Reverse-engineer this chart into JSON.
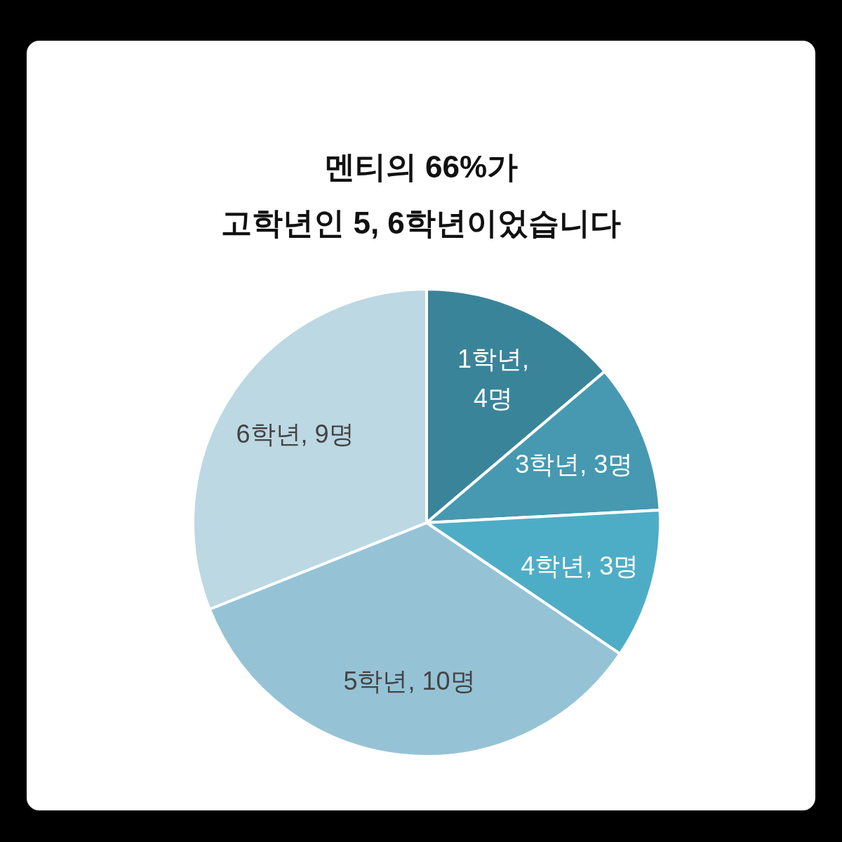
{
  "chart_data": {
    "type": "pie",
    "title": "멘티의 66%가\n고학년인 5, 6학년이었습니다",
    "categories": [
      "1학년",
      "3학년",
      "4학년",
      "5학년",
      "6학년"
    ],
    "values": [
      4,
      3,
      3,
      10,
      9
    ],
    "value_labels": [
      ", 4명",
      ", 3명",
      ", 3명",
      ", 10명",
      ", 9명"
    ],
    "colors": [
      "#3a8499",
      "#4699b0",
      "#4eadc6",
      "#95c3d5",
      "#bcd8e3"
    ],
    "legend": false
  }
}
